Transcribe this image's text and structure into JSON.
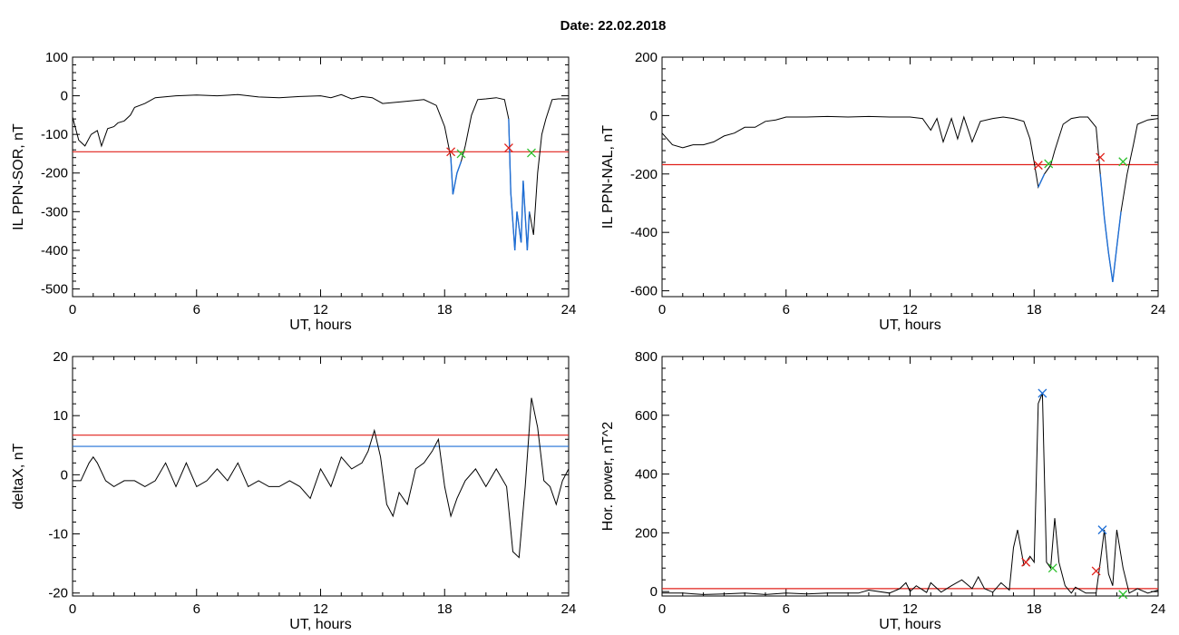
{
  "title": "Date:  22.02.2018",
  "colors": {
    "line": "#000000",
    "threshold_red": "#e0201a",
    "threshold_blue": "#1f6fd6",
    "onset_marker": "#e0201a",
    "end_marker": "#2ec02e",
    "peak_marker": "#1f6fd6"
  },
  "chart_data": [
    {
      "id": "ppn-sor",
      "type": "line",
      "xlabel": "UT, hours",
      "ylabel": "IL PPN-SOR, nT",
      "xlim": [
        0,
        24
      ],
      "ylim": [
        -520,
        100
      ],
      "xticks": [
        0,
        6,
        12,
        18,
        24
      ],
      "yticks": [
        100,
        0,
        -100,
        -200,
        -300,
        -400,
        -500
      ],
      "threshold": -145,
      "series": [
        {
          "x": [
            0,
            0.3,
            0.6,
            0.9,
            1.2,
            1.4,
            1.7,
            2.0,
            2.2,
            2.5,
            2.8,
            3.0,
            3.5,
            4.0,
            5,
            6,
            7,
            8,
            9,
            10,
            11,
            12,
            12.5,
            13,
            13.5,
            14,
            14.5,
            15,
            16,
            17,
            17.6,
            18.0,
            18.3,
            18.4,
            18.6,
            18.8,
            19.0,
            19.3,
            19.6,
            20.0,
            20.5,
            20.9,
            21.1,
            21.2,
            21.4,
            21.5,
            21.7,
            21.8,
            22.0,
            22.1,
            22.3,
            22.5,
            22.7,
            22.9,
            23.2,
            23.5,
            24
          ],
          "y": [
            -55,
            -115,
            -130,
            -100,
            -90,
            -130,
            -85,
            -80,
            -70,
            -65,
            -50,
            -30,
            -20,
            -5,
            0,
            2,
            0,
            3,
            -3,
            -5,
            -2,
            0,
            -5,
            3,
            -8,
            -2,
            -5,
            -20,
            -15,
            -10,
            -25,
            -80,
            -160,
            -255,
            -200,
            -170,
            -130,
            -50,
            -10,
            -8,
            -5,
            -10,
            -60,
            -250,
            -400,
            -300,
            -380,
            -220,
            -400,
            -300,
            -360,
            -200,
            -100,
            -60,
            -10,
            -8,
            -8
          ]
        }
      ],
      "markers": [
        {
          "x": 18.3,
          "y": -145,
          "color": "red"
        },
        {
          "x": 18.8,
          "y": -150,
          "color": "green"
        },
        {
          "x": 21.1,
          "y": -135,
          "color": "red"
        },
        {
          "x": 22.2,
          "y": -148,
          "color": "green"
        }
      ],
      "highlight": [
        {
          "from": 18.3,
          "to": 18.8
        },
        {
          "from": 21.1,
          "to": 22.2
        }
      ]
    },
    {
      "id": "ppn-nal",
      "type": "line",
      "xlabel": "UT, hours",
      "ylabel": "IL PPN-NAL, nT",
      "xlim": [
        0,
        24
      ],
      "ylim": [
        -620,
        200
      ],
      "xticks": [
        0,
        6,
        12,
        18,
        24
      ],
      "yticks": [
        200,
        0,
        -200,
        -400,
        -600
      ],
      "threshold": -168,
      "series": [
        {
          "x": [
            0,
            0.5,
            1.0,
            1.5,
            2.0,
            2.5,
            3,
            3.5,
            4,
            4.5,
            5,
            5.5,
            6,
            7,
            8,
            9,
            10,
            11,
            12,
            12.6,
            13,
            13.3,
            13.6,
            14,
            14.3,
            14.6,
            15,
            15.4,
            16,
            16.5,
            17,
            17.5,
            17.8,
            18.0,
            18.2,
            18.5,
            18.8,
            19.0,
            19.4,
            19.8,
            20.2,
            20.6,
            21.0,
            21.2,
            21.4,
            21.6,
            21.8,
            22.0,
            22.2,
            22.5,
            22.8,
            23.0,
            23.5,
            24
          ],
          "y": [
            -60,
            -100,
            -110,
            -100,
            -100,
            -90,
            -70,
            -60,
            -40,
            -40,
            -20,
            -15,
            -5,
            -5,
            -3,
            -5,
            -3,
            -5,
            -5,
            -10,
            -50,
            -10,
            -90,
            -10,
            -80,
            -5,
            -90,
            -20,
            -10,
            -5,
            -10,
            -20,
            -80,
            -160,
            -245,
            -200,
            -170,
            -120,
            -30,
            -10,
            -5,
            -5,
            -40,
            -200,
            -350,
            -470,
            -570,
            -450,
            -330,
            -200,
            -100,
            -30,
            -15,
            -10
          ]
        }
      ],
      "markers": [
        {
          "x": 18.2,
          "y": -170,
          "color": "red"
        },
        {
          "x": 18.7,
          "y": -165,
          "color": "green"
        },
        {
          "x": 21.2,
          "y": -143,
          "color": "red"
        },
        {
          "x": 22.3,
          "y": -158,
          "color": "green"
        }
      ],
      "highlight": [
        {
          "from": 18.2,
          "to": 18.7
        },
        {
          "from": 21.2,
          "to": 22.3
        }
      ]
    },
    {
      "id": "deltax",
      "type": "line",
      "xlabel": "UT, hours",
      "ylabel": "deltaX, nT",
      "xlim": [
        0,
        24
      ],
      "ylim": [
        -20.5,
        20
      ],
      "xticks": [
        0,
        6,
        12,
        18,
        24
      ],
      "yticks": [
        20,
        10,
        0,
        -10,
        -20
      ],
      "threshold": 6.7,
      "threshold2": 4.8,
      "series": [
        {
          "x": [
            0,
            0.4,
            0.8,
            1.0,
            1.2,
            1.6,
            2.0,
            2.5,
            3,
            3.5,
            4,
            4.5,
            5,
            5.5,
            6,
            6.5,
            7,
            7.5,
            8,
            8.5,
            9,
            9.5,
            10,
            10.5,
            11,
            11.5,
            12,
            12.5,
            13,
            13.5,
            14,
            14.3,
            14.6,
            14.9,
            15.2,
            15.5,
            15.8,
            16.2,
            16.6,
            17.0,
            17.4,
            17.7,
            18.0,
            18.3,
            18.6,
            19.0,
            19.5,
            20,
            20.5,
            21,
            21.3,
            21.6,
            21.9,
            22.2,
            22.5,
            22.8,
            23.1,
            23.4,
            23.7,
            24
          ],
          "y": [
            -1,
            -1,
            2,
            3,
            2,
            -1,
            -2,
            -1,
            -1,
            -2,
            -1,
            2,
            -2,
            2,
            -2,
            -1,
            1,
            -1,
            2,
            -2,
            -1,
            -2,
            -2,
            -1,
            -2,
            -4,
            1,
            -2,
            3,
            1,
            2,
            4,
            7.5,
            3,
            -5,
            -7,
            -3,
            -5,
            1,
            2,
            4,
            6,
            -2,
            -7,
            -4,
            -1,
            1,
            -2,
            1,
            -2,
            -13,
            -14,
            -2,
            13,
            8,
            -1,
            -2,
            -5,
            -1,
            1
          ]
        }
      ],
      "markers": [],
      "highlight": []
    },
    {
      "id": "hor-power",
      "type": "line",
      "xlabel": "UT, hours",
      "ylabel": "Hor. power, nT^2",
      "xlim": [
        0,
        24
      ],
      "ylim": [
        -15,
        800
      ],
      "xticks": [
        0,
        6,
        12,
        18,
        24
      ],
      "yticks": [
        800,
        600,
        400,
        200,
        0
      ],
      "threshold": 10,
      "series": [
        {
          "x": [
            0,
            1,
            2,
            3,
            4,
            5,
            6,
            7,
            8,
            9,
            9.5,
            10,
            11,
            11.5,
            11.8,
            12,
            12.3,
            12.8,
            13,
            13.5,
            14,
            14.5,
            15,
            15.3,
            15.6,
            16,
            16.4,
            16.8,
            17,
            17.2,
            17.5,
            17.8,
            18,
            18.2,
            18.4,
            18.6,
            18.8,
            19.0,
            19.2,
            19.5,
            19.8,
            20,
            20.5,
            21,
            21.2,
            21.4,
            21.6,
            21.8,
            22.0,
            22.3,
            22.6,
            23,
            23.5,
            24
          ],
          "y": [
            -5,
            -5,
            -10,
            -8,
            -5,
            -10,
            -5,
            -8,
            -5,
            -5,
            -5,
            5,
            -5,
            10,
            30,
            0,
            20,
            -3,
            30,
            -2,
            20,
            40,
            10,
            50,
            10,
            -2,
            30,
            5,
            150,
            210,
            90,
            120,
            100,
            640,
            675,
            100,
            80,
            250,
            100,
            20,
            -5,
            15,
            -5,
            -5,
            100,
            210,
            60,
            20,
            210,
            80,
            -5,
            10,
            -5,
            5
          ]
        }
      ],
      "markers": [
        {
          "x": 17.6,
          "y": 100,
          "color": "red"
        },
        {
          "x": 18.9,
          "y": 80,
          "color": "green"
        },
        {
          "x": 18.4,
          "y": 675,
          "color": "blue"
        },
        {
          "x": 21.0,
          "y": 70,
          "color": "red"
        },
        {
          "x": 21.3,
          "y": 210,
          "color": "blue"
        },
        {
          "x": 22.3,
          "y": -10,
          "color": "green"
        }
      ],
      "highlight": []
    }
  ]
}
